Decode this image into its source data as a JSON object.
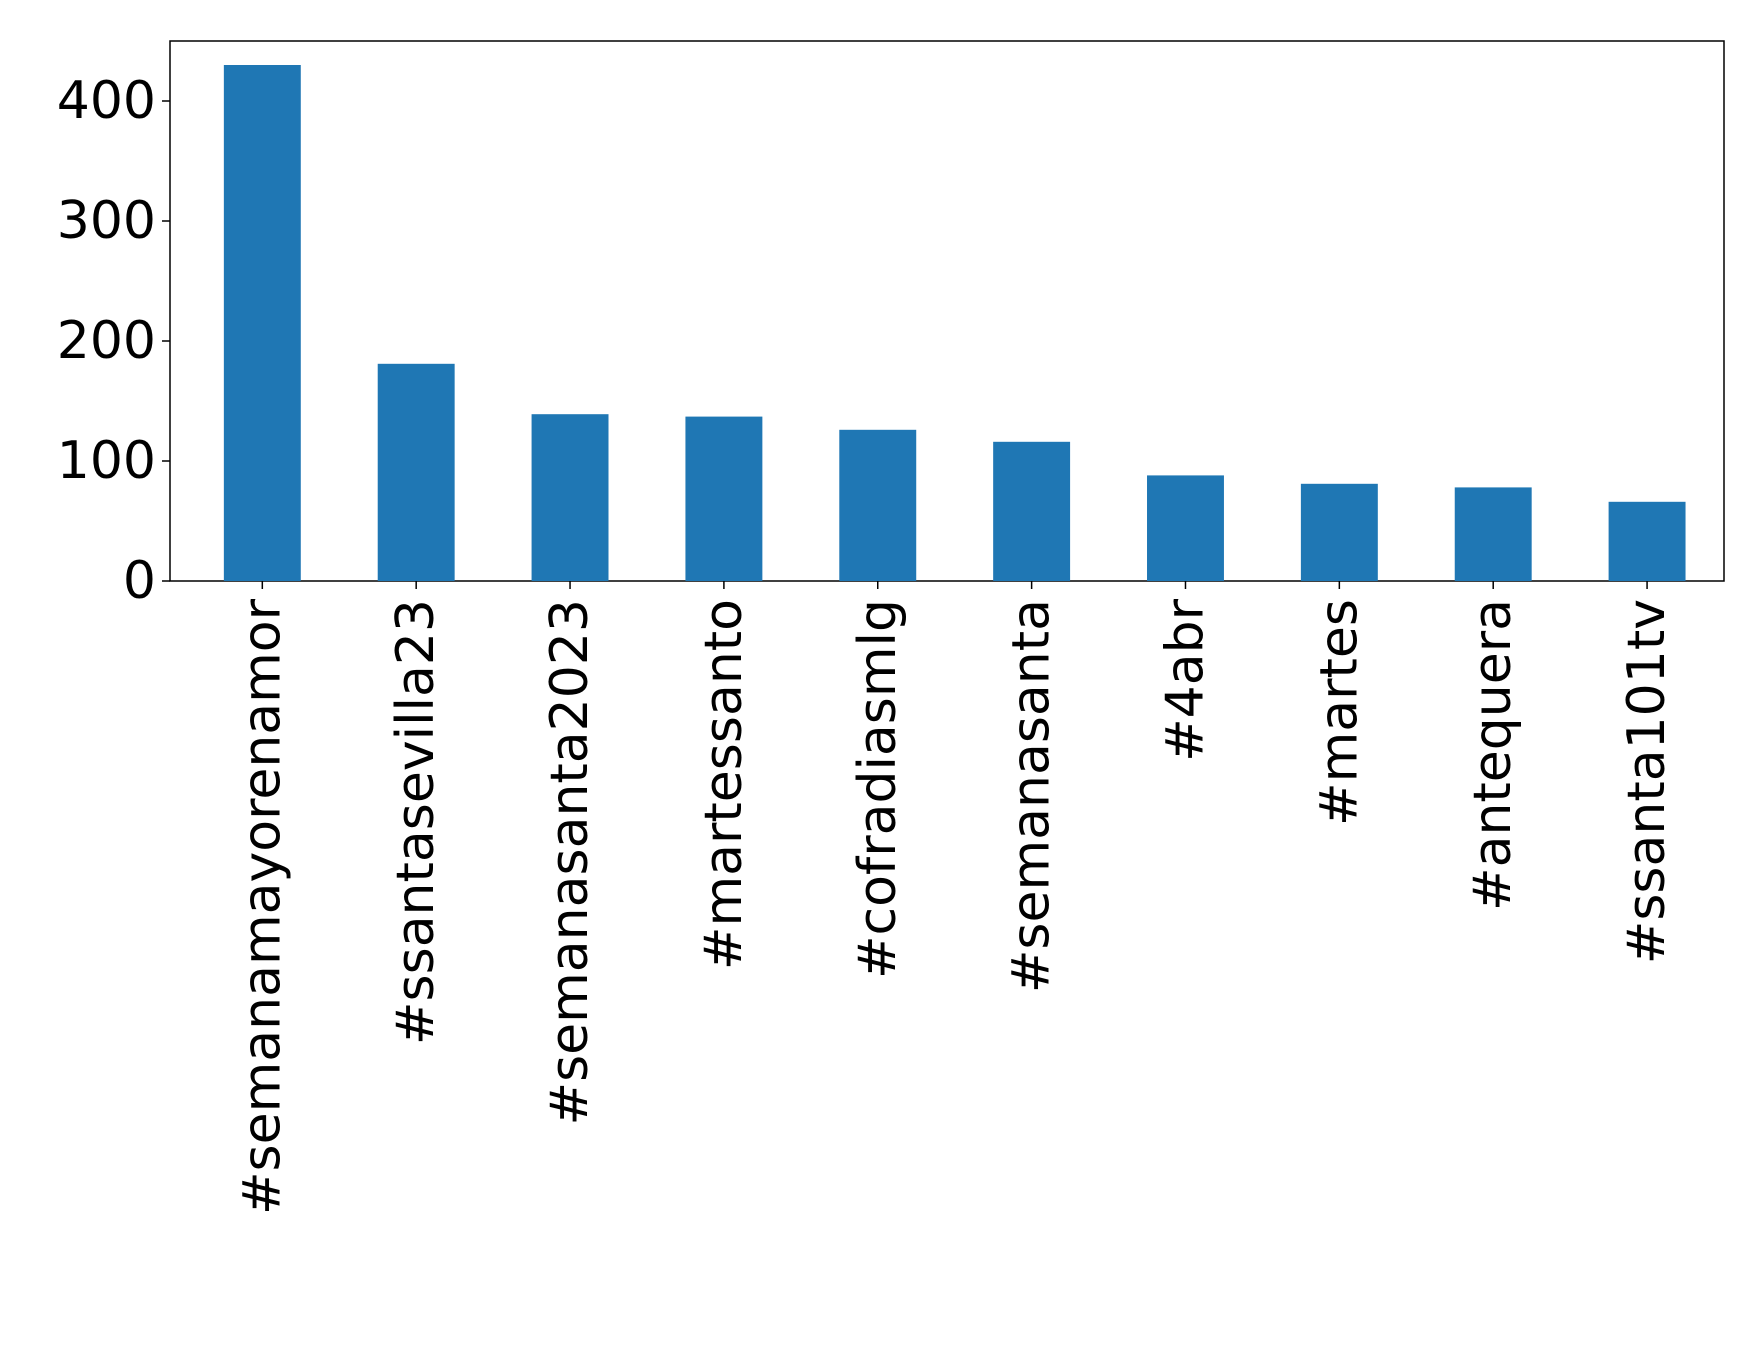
{
  "chart_data": {
    "type": "bar",
    "title": "",
    "xlabel": "",
    "ylabel": "",
    "categories": [
      "#semanamayorenamor",
      "#ssantasevilla23",
      "#semanasanta2023",
      "#martessanto",
      "#cofradiasmlg",
      "#semanasanta",
      "#4abr",
      "#martes",
      "#antequera",
      "#ssanta101tv"
    ],
    "values": [
      430,
      181,
      139,
      137,
      126,
      116,
      88,
      81,
      78,
      66
    ],
    "ylim": [
      0,
      450
    ],
    "yticks": [
      0,
      100,
      200,
      300,
      400
    ],
    "bar_color": "#1f77b4",
    "grid": false,
    "legend": "none"
  }
}
